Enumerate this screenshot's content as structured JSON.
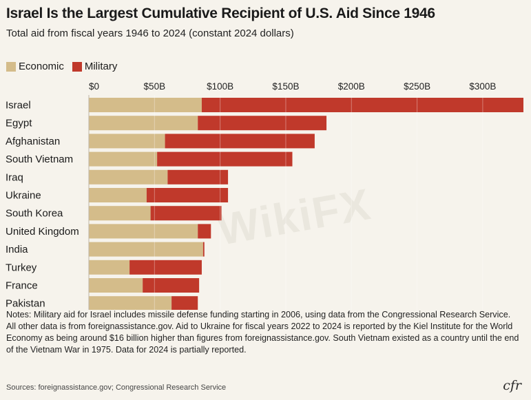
{
  "title": "Israel Is the Largest Cumulative Recipient of U.S. Aid Since 1946",
  "subtitle": "Total aid from fiscal years 1946 to 2024 (constant 2024 dollars)",
  "colors": {
    "economic": "#d4bc8a",
    "military": "#c0392b"
  },
  "notes": "Notes: Military aid for Israel includes missile defense funding starting in 2006, using data from the Congressional Research Service. All other data is from foreignassistance.gov. Aid to Ukraine for fiscal years 2022 to 2024 is reported by the Kiel Institute for the World Economy as being around $16 billion higher than figures from foreignassistance.gov. South Vietnam existed as a country until the end of the Vietnam War in 1975. Data for 2024 is partially reported.",
  "sources": "Sources: foreignassistance.gov; Congressional Research Service",
  "logo": "cfr",
  "watermark": "WikiFX",
  "chart_data": {
    "type": "bar",
    "orientation": "horizontal",
    "stacked": true,
    "categories": [
      "Israel",
      "Egypt",
      "Afghanistan",
      "South Vietnam",
      "Iraq",
      "Ukraine",
      "South Korea",
      "United Kingdom",
      "India",
      "Turkey",
      "France",
      "Pakistan"
    ],
    "series": [
      {
        "name": "Economic",
        "values": [
          86,
          83,
          58,
          52,
          60,
          44,
          47,
          83,
          87,
          31,
          41,
          63
        ]
      },
      {
        "name": "Military",
        "values": [
          245,
          98,
          114,
          103,
          46,
          62,
          54,
          10,
          1,
          55,
          43,
          20
        ]
      }
    ],
    "xlim": [
      0,
      331
    ],
    "xticks": [
      0,
      50,
      100,
      150,
      200,
      250,
      300
    ],
    "xtick_labels": [
      "$0",
      "$50B",
      "$100B",
      "$150B",
      "$200B",
      "$250B",
      "$300B"
    ],
    "legend": "top-left",
    "grid": true
  }
}
